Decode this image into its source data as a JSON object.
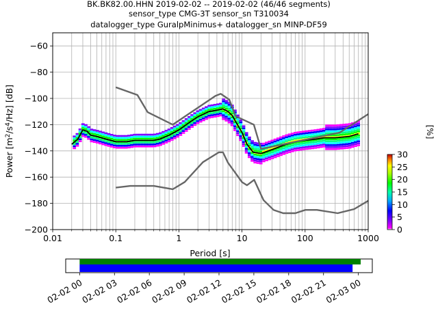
{
  "title_lines": [
    "BK.BK82.00.HHN   2019-02-02 -- 2019-02-02  (46/46 segments)",
    "sensor_type CMG-3T sensor_sn T310034",
    "datalogger_type GuralpMinimus+ datalogger_sn MINP-DF59"
  ],
  "chart_data": {
    "type": "heatmap",
    "title": "BK.BK82.00.HHN   2019-02-02 -- 2019-02-02  (46/46 segments)",
    "xlabel": "Period [s]",
    "ylabel": "Power [m²/s⁴/Hz] [dB]",
    "xscale": "log",
    "xlim": [
      0.01,
      1000
    ],
    "ylim": [
      -200,
      -50
    ],
    "grid": true,
    "xticks": [
      0.01,
      0.1,
      1,
      10,
      100,
      1000
    ],
    "xtick_labels": [
      "0.01",
      "0.1",
      "1",
      "10",
      "100",
      "1000"
    ],
    "yticks": [
      -200,
      -180,
      -160,
      -140,
      -120,
      -100,
      -80,
      -60
    ],
    "ytick_labels": [
      "−200",
      "−180",
      "−160",
      "−140",
      "−120",
      "−100",
      "−80",
      "−60"
    ],
    "colorbar": {
      "label": "[%]",
      "ticks": [
        0,
        5,
        10,
        15,
        20,
        25,
        30
      ],
      "tick_labels": [
        "0",
        "5",
        "10",
        "15",
        "20",
        "25",
        "30"
      ],
      "range": [
        0,
        30
      ],
      "colormap": [
        "#ff00ff",
        "#7f00ff",
        "#0000ff",
        "#00ffff",
        "#00ff80",
        "#00ff00",
        "#ffff00",
        "#ff8000",
        "#ff0000",
        "#800000"
      ]
    },
    "series": [
      {
        "role": "mean",
        "color": "#000000",
        "x": [
          0.02,
          0.025,
          0.03,
          0.035,
          0.04,
          0.05,
          0.07,
          0.1,
          0.15,
          0.2,
          0.3,
          0.4,
          0.5,
          0.7,
          1,
          1.5,
          2,
          3,
          4,
          5,
          6,
          7,
          8,
          10,
          12,
          15,
          20,
          30,
          50,
          70,
          100,
          150,
          200,
          300,
          500,
          700
        ],
        "y": [
          -135,
          -131,
          -124,
          -125,
          -128,
          -129,
          -131,
          -133,
          -133,
          -132,
          -132,
          -132,
          -131,
          -128,
          -124,
          -118,
          -114,
          -110,
          -109,
          -108,
          -110,
          -113,
          -118,
          -126,
          -135,
          -141,
          -142,
          -139,
          -135,
          -133,
          -132,
          -131,
          -130,
          -130,
          -129,
          -127
        ]
      },
      {
        "role": "new_high_noise_model",
        "color": "#666666",
        "x": [
          0.1,
          0.22,
          0.32,
          0.8,
          3.8,
          4.6,
          6.3,
          7.9,
          15.4,
          20,
          354.8,
          1000
        ],
        "y": [
          -91.5,
          -97.4,
          -110.5,
          -120,
          -98,
          -96.5,
          -101,
          -113.5,
          -120,
          -138.5,
          -126,
          -112
        ]
      },
      {
        "role": "new_low_noise_model",
        "color": "#666666",
        "x": [
          0.1,
          0.17,
          0.4,
          0.8,
          1.24,
          2.4,
          4.3,
          5,
          6,
          10,
          12,
          15.6,
          21.9,
          31.6,
          45,
          70,
          101,
          154,
          328,
          600,
          1000
        ],
        "y": [
          -168,
          -166.7,
          -166.7,
          -169.2,
          -163.7,
          -148.6,
          -141.1,
          -141.1,
          -149,
          -163.8,
          -166.2,
          -162.1,
          -177.5,
          -185,
          -187.5,
          -187.5,
          -185,
          -185,
          -187.5,
          -184.4,
          -178
        ]
      }
    ]
  },
  "timeline": {
    "tick_labels": [
      "02-02 00",
      "02-02 03",
      "02-02 06",
      "02-02 09",
      "02-02 12",
      "02-02 15",
      "02-02 18",
      "02-02 21",
      "02-03 00"
    ],
    "ticks_hours": [
      0,
      3,
      6,
      9,
      12,
      15,
      18,
      21,
      24
    ],
    "xlim_hours": [
      -1.2,
      25.2
    ],
    "green_bar_hours": [
      0,
      24.2
    ],
    "blue_bar_hours": [
      0,
      23.5
    ],
    "green_color": "#008000",
    "blue_color": "#0000ff"
  }
}
